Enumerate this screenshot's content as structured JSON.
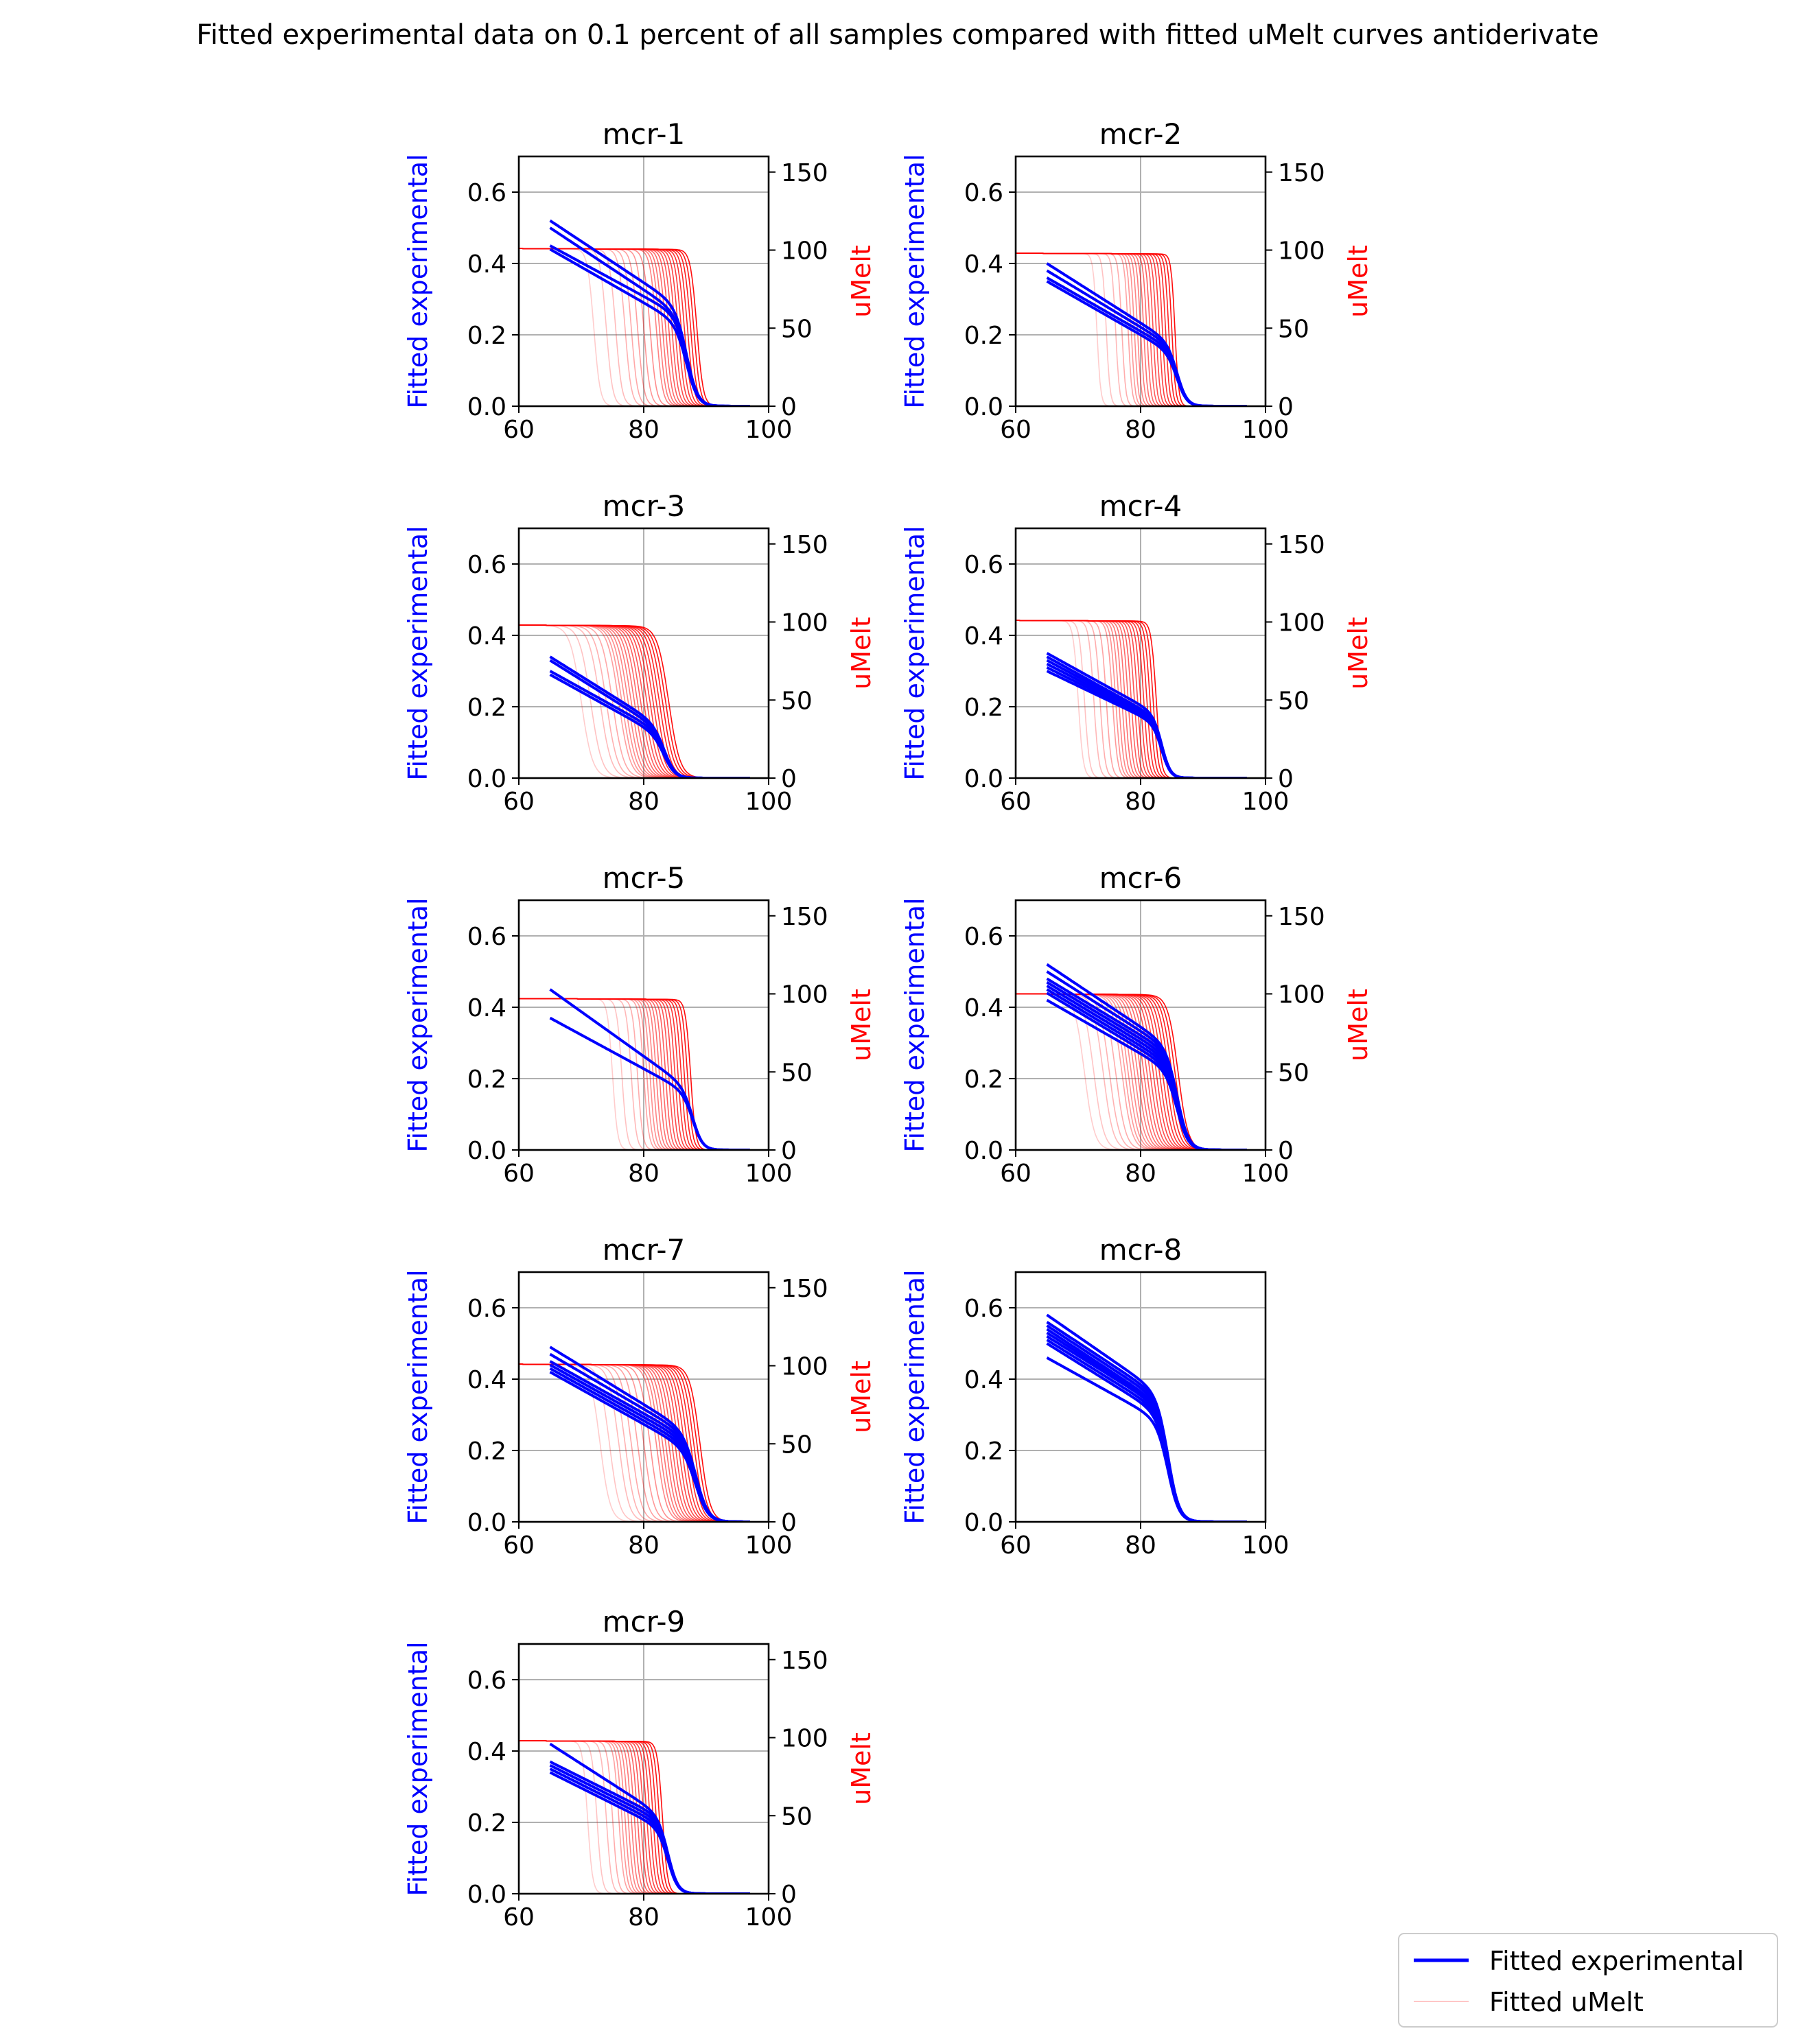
{
  "figure_title": "Fitted experimental data on 0.1 percent of all samples compared with fitted uMelt curves antiderivate",
  "legend": {
    "placement": "lower-right",
    "entries": [
      {
        "label": "Fitted experimental",
        "color": "#0000ff",
        "line_width": "thick"
      },
      {
        "label": "Fitted uMelt",
        "color": "#ff0000",
        "line_width": "thin",
        "opacity": 0.2
      }
    ]
  },
  "colors": {
    "experimental": "#0000ff",
    "umelt": "#ff0000",
    "grid": "#b0b0b0",
    "text": "#000000"
  },
  "chart_data": [
    {
      "type": "line",
      "title": "mcr-1",
      "xlabel": "",
      "ylabel": "Fitted experimental",
      "y2label": "uMelt",
      "xlim": [
        60,
        100
      ],
      "ylim": [
        0,
        0.7
      ],
      "y2lim": [
        0,
        160
      ],
      "xticks": [
        60,
        80,
        100
      ],
      "yticks": [
        0.0,
        0.2,
        0.4,
        0.6
      ],
      "y2ticks": [
        0,
        50,
        100,
        150
      ],
      "grid": true,
      "has_umelt": true,
      "experimental": {
        "x_start": 65,
        "x_end": 97,
        "start_values": [
          0.52,
          0.5,
          0.45,
          0.44
        ],
        "shoulder_values": [
          0.3,
          0.28,
          0.27,
          0.25
        ],
        "tm": 87.0,
        "width": 0.9
      },
      "umelt": {
        "plateau": 101,
        "tm_values": [
          72,
          74,
          75.5,
          77,
          78,
          79,
          80,
          81,
          82,
          82.5,
          83,
          83.5,
          84,
          84.5,
          85,
          85.5,
          86,
          86.5,
          87,
          87.5,
          88,
          88.5
        ],
        "width": 0.5
      }
    },
    {
      "type": "line",
      "title": "mcr-2",
      "xlabel": "",
      "ylabel": "Fitted experimental",
      "y2label": "uMelt",
      "xlim": [
        60,
        100
      ],
      "ylim": [
        0,
        0.7
      ],
      "y2lim": [
        0,
        160
      ],
      "xticks": [
        60,
        80,
        100
      ],
      "yticks": [
        0.0,
        0.2,
        0.4,
        0.6
      ],
      "y2ticks": [
        0,
        50,
        100,
        150
      ],
      "grid": true,
      "has_umelt": true,
      "experimental": {
        "x_start": 65,
        "x_end": 97,
        "start_values": [
          0.4,
          0.38,
          0.36,
          0.35
        ],
        "shoulder_values": [
          0.2,
          0.19,
          0.18,
          0.17
        ],
        "tm": 86.0,
        "width": 0.8
      },
      "umelt": {
        "plateau": 98,
        "tm_values": [
          73,
          74.5,
          76,
          77,
          78,
          78.5,
          79,
          79.5,
          80,
          80.5,
          81,
          81.5,
          82,
          82.5,
          83,
          83.5,
          84,
          84.5,
          85,
          85.5
        ],
        "width": 0.3
      }
    },
    {
      "type": "line",
      "title": "mcr-3",
      "xlabel": "",
      "ylabel": "Fitted experimental",
      "y2label": "uMelt",
      "xlim": [
        60,
        100
      ],
      "ylim": [
        0,
        0.7
      ],
      "y2lim": [
        0,
        160
      ],
      "xticks": [
        60,
        80,
        100
      ],
      "yticks": [
        0.0,
        0.2,
        0.4,
        0.6
      ],
      "y2ticks": [
        0,
        50,
        100,
        150
      ],
      "grid": true,
      "has_umelt": true,
      "experimental": {
        "x_start": 65,
        "x_end": 97,
        "start_values": [
          0.34,
          0.33,
          0.3,
          0.29
        ],
        "shoulder_values": [
          0.17,
          0.16,
          0.15,
          0.14
        ],
        "tm": 83.5,
        "width": 0.9
      },
      "umelt": {
        "plateau": 98,
        "tm_values": [
          70,
          71.5,
          73,
          74,
          75,
          76,
          76.5,
          77,
          77.5,
          78,
          78.5,
          79,
          79.5,
          80,
          80.5,
          81,
          81.5,
          82,
          82.5,
          83,
          83.5,
          84
        ],
        "width": 0.9
      }
    },
    {
      "type": "line",
      "title": "mcr-4",
      "xlabel": "",
      "ylabel": "Fitted experimental",
      "y2label": "uMelt",
      "xlim": [
        60,
        100
      ],
      "ylim": [
        0,
        0.7
      ],
      "y2lim": [
        0,
        160
      ],
      "xticks": [
        60,
        80,
        100
      ],
      "yticks": [
        0.0,
        0.2,
        0.4,
        0.6
      ],
      "y2ticks": [
        0,
        50,
        100,
        150
      ],
      "grid": true,
      "has_umelt": true,
      "experimental": {
        "x_start": 65,
        "x_end": 97,
        "start_values": [
          0.35,
          0.34,
          0.33,
          0.32,
          0.31,
          0.3
        ],
        "shoulder_values": [
          0.2,
          0.19,
          0.185,
          0.18,
          0.175,
          0.17
        ],
        "tm": 83.5,
        "width": 0.7
      },
      "umelt": {
        "plateau": 101,
        "tm_values": [
          70,
          71,
          72.5,
          73.5,
          74.5,
          75.5,
          76,
          76.5,
          77,
          77.5,
          78,
          78.5,
          79,
          79.5,
          80,
          80.5,
          81,
          81.5,
          82,
          82.5
        ],
        "width": 0.4
      }
    },
    {
      "type": "line",
      "title": "mcr-5",
      "xlabel": "",
      "ylabel": "Fitted experimental",
      "y2label": "uMelt",
      "xlim": [
        60,
        100
      ],
      "ylim": [
        0,
        0.7
      ],
      "y2lim": [
        0,
        160
      ],
      "xticks": [
        60,
        80,
        100
      ],
      "yticks": [
        0.0,
        0.2,
        0.4,
        0.6
      ],
      "y2ticks": [
        0,
        50,
        100,
        150
      ],
      "grid": true,
      "has_umelt": true,
      "experimental": {
        "x_start": 65,
        "x_end": 97,
        "start_values": [
          0.45,
          0.37
        ],
        "shoulder_values": [
          0.2,
          0.18
        ],
        "tm": 88.0,
        "width": 0.8
      },
      "umelt": {
        "plateau": 97,
        "tm_values": [
          75,
          76.5,
          78,
          79,
          80,
          80.5,
          81,
          81.5,
          82,
          82.5,
          83,
          83.5,
          84,
          84.5,
          85,
          85.5,
          86,
          86.5,
          87,
          87.5
        ],
        "width": 0.4
      }
    },
    {
      "type": "line",
      "title": "mcr-6",
      "xlabel": "",
      "ylabel": "Fitted experimental",
      "y2label": "uMelt",
      "xlim": [
        60,
        100
      ],
      "ylim": [
        0,
        0.7
      ],
      "y2lim": [
        0,
        160
      ],
      "xticks": [
        60,
        80,
        100
      ],
      "yticks": [
        0.0,
        0.2,
        0.4,
        0.6
      ],
      "y2ticks": [
        0,
        50,
        100,
        150
      ],
      "grid": true,
      "has_umelt": true,
      "experimental": {
        "x_start": 65,
        "x_end": 97,
        "start_values": [
          0.52,
          0.5,
          0.48,
          0.47,
          0.46,
          0.45,
          0.44,
          0.42
        ],
        "shoulder_values": [
          0.31,
          0.3,
          0.29,
          0.28,
          0.27,
          0.26,
          0.25,
          0.24
        ],
        "tm": 86.0,
        "width": 0.9
      },
      "umelt": {
        "plateau": 100,
        "tm_values": [
          71,
          72.5,
          74,
          75,
          76,
          77,
          77.5,
          78,
          78.5,
          79,
          79.5,
          80,
          80.5,
          81,
          81.5,
          82,
          82.5,
          83,
          83.5,
          84,
          84.5,
          85,
          85.5,
          86
        ],
        "width": 0.8
      }
    },
    {
      "type": "line",
      "title": "mcr-7",
      "xlabel": "",
      "ylabel": "Fitted experimental",
      "y2label": "uMelt",
      "xlim": [
        60,
        100
      ],
      "ylim": [
        0,
        0.7
      ],
      "y2lim": [
        0,
        160
      ],
      "xticks": [
        60,
        80,
        100
      ],
      "yticks": [
        0.0,
        0.2,
        0.4,
        0.6
      ],
      "y2ticks": [
        0,
        50,
        100,
        150
      ],
      "grid": true,
      "has_umelt": true,
      "experimental": {
        "x_start": 65,
        "x_end": 97,
        "start_values": [
          0.49,
          0.47,
          0.45,
          0.44,
          0.43,
          0.42
        ],
        "shoulder_values": [
          0.27,
          0.26,
          0.25,
          0.24,
          0.23,
          0.22
        ],
        "tm": 88.5,
        "width": 1.0
      },
      "umelt": {
        "plateau": 101,
        "tm_values": [
          73,
          74.5,
          76,
          77,
          78,
          79,
          80,
          81,
          82,
          82.5,
          83,
          83.5,
          84,
          84.5,
          85,
          85.5,
          86,
          86.5,
          87,
          87.5,
          88,
          88.5,
          89
        ],
        "width": 0.8
      }
    },
    {
      "type": "line",
      "title": "mcr-8",
      "xlabel": "",
      "ylabel": "Fitted experimental",
      "y2label": "",
      "xlim": [
        60,
        100
      ],
      "ylim": [
        0,
        0.7
      ],
      "xticks": [
        60,
        80,
        100
      ],
      "yticks": [
        0.0,
        0.2,
        0.4,
        0.6
      ],
      "grid": true,
      "has_umelt": false,
      "experimental": {
        "x_start": 65,
        "x_end": 97,
        "start_values": [
          0.58,
          0.56,
          0.55,
          0.54,
          0.53,
          0.52,
          0.51,
          0.5,
          0.46
        ],
        "shoulder_values": [
          0.38,
          0.37,
          0.36,
          0.35,
          0.345,
          0.34,
          0.33,
          0.32,
          0.3
        ],
        "tm": 84.5,
        "width": 0.9
      },
      "umelt": {
        "plateau": 0,
        "tm_values": [],
        "width": 0.5
      }
    },
    {
      "type": "line",
      "title": "mcr-9",
      "xlabel": "",
      "ylabel": "Fitted experimental",
      "y2label": "uMelt",
      "xlim": [
        60,
        100
      ],
      "ylim": [
        0,
        0.7
      ],
      "y2lim": [
        0,
        160
      ],
      "xticks": [
        60,
        80,
        100
      ],
      "yticks": [
        0.0,
        0.2,
        0.4,
        0.6
      ],
      "y2ticks": [
        0,
        50,
        100,
        150
      ],
      "grid": true,
      "has_umelt": true,
      "experimental": {
        "x_start": 65,
        "x_end": 97,
        "start_values": [
          0.42,
          0.37,
          0.36,
          0.35,
          0.34
        ],
        "shoulder_values": [
          0.24,
          0.23,
          0.22,
          0.21,
          0.2
        ],
        "tm": 84.0,
        "width": 0.8
      },
      "umelt": {
        "plateau": 98,
        "tm_values": [
          71,
          72.5,
          74,
          75,
          76,
          76.5,
          77,
          77.5,
          78,
          78.5,
          79,
          79.5,
          80,
          80.5,
          81,
          81.5,
          82,
          82.5,
          83
        ],
        "width": 0.4
      }
    }
  ]
}
